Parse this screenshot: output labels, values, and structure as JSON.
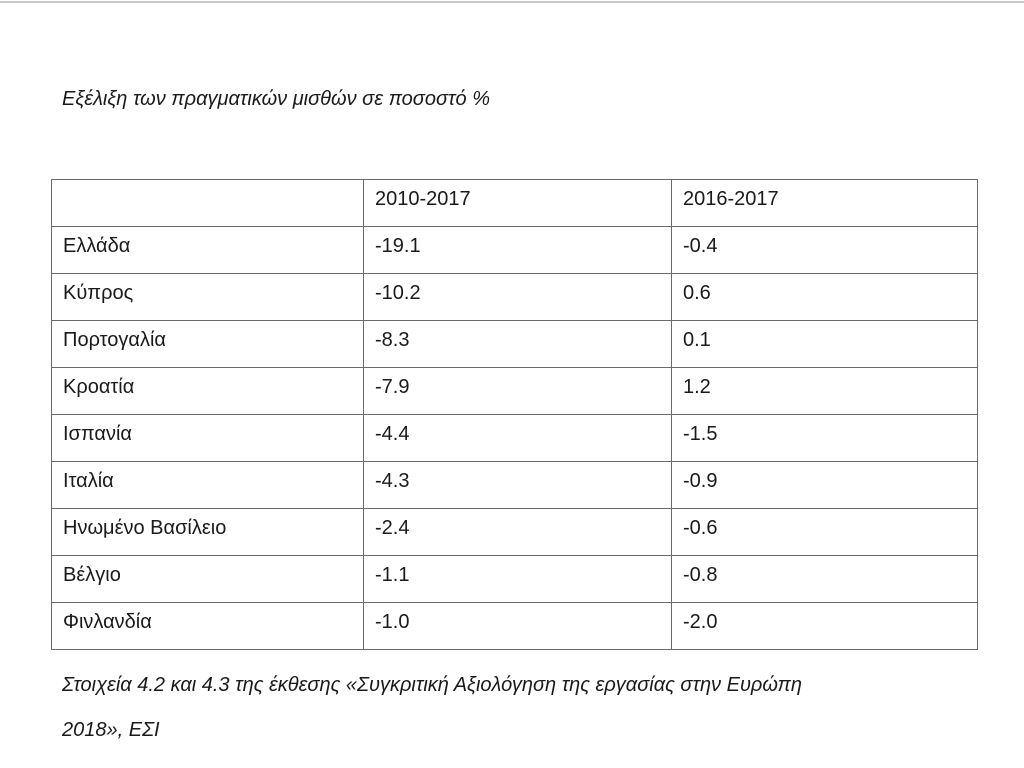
{
  "title": "Εξέλιξη των πραγματικών μισθών σε ποσοστό %",
  "table": {
    "header": [
      "2010-2017",
      "2016-2017"
    ],
    "rows": [
      [
        "Ελλάδα",
        "-19.1",
        "-0.4"
      ],
      [
        "Κύπρος",
        "-10.2",
        "0.6"
      ],
      [
        "Πορτογαλία",
        "-8.3",
        "0.1"
      ],
      [
        "Κροατία",
        "-7.9",
        "1.2"
      ],
      [
        "Ισπανία",
        "-4.4",
        "-1.5"
      ],
      [
        "Ιταλία",
        "-4.3",
        "-0.9"
      ],
      [
        "Ηνωμένο Βασίλειο",
        "-2.4",
        "-0.6"
      ],
      [
        "Βέλγιο",
        "-1.1",
        "-0.8"
      ],
      [
        "Φινλανδία",
        "-1.0",
        "-2.0"
      ]
    ]
  },
  "caption": {
    "lines": [
      "Στοιχεία 4.2 και 4.3 της έκθεσης «Συγκριτική Αξιολόγηση της εργασίας στην Ευρώπη",
      "2018», ΕΣΙ"
    ]
  }
}
